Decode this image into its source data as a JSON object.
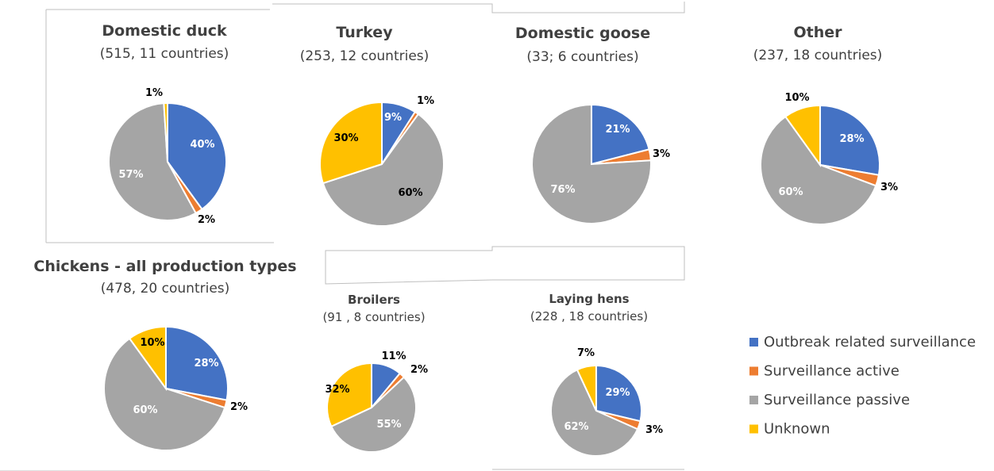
{
  "chart_data": [
    {
      "type": "pie",
      "title": "Domestic duck",
      "subtitle": "(515, 11 countries)",
      "slices": [
        {
          "category": "Outbreak related surveillance",
          "value": 40,
          "label": "40%"
        },
        {
          "category": "Surveillance active",
          "value": 2,
          "label": "2%"
        },
        {
          "category": "Surveillance passive",
          "value": 57,
          "label": "57%"
        },
        {
          "category": "Unknown",
          "value": 1,
          "label": "1%"
        }
      ]
    },
    {
      "type": "pie",
      "title": "Turkey",
      "subtitle": "(253, 12 countries)",
      "slices": [
        {
          "category": "Outbreak related surveillance",
          "value": 9,
          "label": "9%"
        },
        {
          "category": "Surveillance active",
          "value": 1,
          "label": "1%"
        },
        {
          "category": "Surveillance passive",
          "value": 60,
          "label": "60%"
        },
        {
          "category": "Unknown",
          "value": 30,
          "label": "30%"
        }
      ]
    },
    {
      "type": "pie",
      "title": "Domestic goose",
      "subtitle": "(33; 6 countries)",
      "slices": [
        {
          "category": "Outbreak related surveillance",
          "value": 21,
          "label": "21%"
        },
        {
          "category": "Surveillance active",
          "value": 3,
          "label": "3%"
        },
        {
          "category": "Surveillance passive",
          "value": 76,
          "label": "76%"
        },
        {
          "category": "Unknown",
          "value": 0,
          "label": ""
        }
      ]
    },
    {
      "type": "pie",
      "title": "Other",
      "subtitle": "(237, 18 countries)",
      "slices": [
        {
          "category": "Outbreak related surveillance",
          "value": 28,
          "label": "28%"
        },
        {
          "category": "Surveillance active",
          "value": 3,
          "label": "3%"
        },
        {
          "category": "Surveillance passive",
          "value": 60,
          "label": "60%"
        },
        {
          "category": "Unknown",
          "value": 10,
          "label": "10%"
        }
      ]
    },
    {
      "type": "pie",
      "title": "Chickens - all production types",
      "subtitle": "(478, 20 countries)",
      "slices": [
        {
          "category": "Outbreak related surveillance",
          "value": 28,
          "label": "28%"
        },
        {
          "category": "Surveillance active",
          "value": 2,
          "label": "2%"
        },
        {
          "category": "Surveillance passive",
          "value": 60,
          "label": "60%"
        },
        {
          "category": "Unknown",
          "value": 10,
          "label": "10%"
        }
      ]
    },
    {
      "type": "pie",
      "title": "Broilers",
      "subtitle": "(91 , 8 countries)",
      "slices": [
        {
          "category": "Outbreak related surveillance",
          "value": 11,
          "label": "11%"
        },
        {
          "category": "Surveillance active",
          "value": 2,
          "label": "2%"
        },
        {
          "category": "Surveillance passive",
          "value": 55,
          "label": "55%"
        },
        {
          "category": "Unknown",
          "value": 32,
          "label": "32%"
        }
      ]
    },
    {
      "type": "pie",
      "title": "Laying hens",
      "subtitle": "(228 , 18 countries)",
      "slices": [
        {
          "category": "Outbreak related surveillance",
          "value": 29,
          "label": "29%"
        },
        {
          "category": "Surveillance active",
          "value": 3,
          "label": "3%"
        },
        {
          "category": "Surveillance passive",
          "value": 62,
          "label": "62%"
        },
        {
          "category": "Unknown",
          "value": 7,
          "label": "7%"
        }
      ]
    }
  ],
  "legend": {
    "placement": "bottom-right",
    "items": [
      {
        "label": "Outbreak related surveillance",
        "color": "#4472c4"
      },
      {
        "label": "Surveillance active",
        "color": "#ed7d31"
      },
      {
        "label": "Surveillance passive",
        "color": "#a5a5a5"
      },
      {
        "label": "Unknown",
        "color": "#ffc000"
      }
    ]
  },
  "colors": {
    "Outbreak related surveillance": "#4472c4",
    "Surveillance active": "#ed7d31",
    "Surveillance passive": "#a5a5a5",
    "Unknown": "#ffc000"
  }
}
